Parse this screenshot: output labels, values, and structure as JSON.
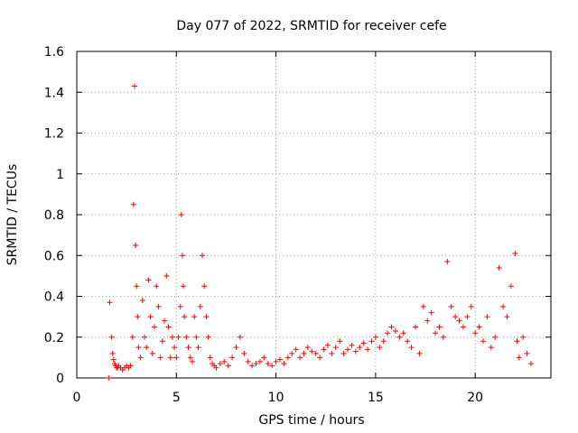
{
  "chart_data": {
    "type": "scatter",
    "title": "Day 077 of 2022, SRMTID for receiver cefe",
    "xlabel": "GPS time / hours",
    "ylabel": "SRMTID / TECUs",
    "xlim": [
      0,
      23.8
    ],
    "ylim": [
      0,
      1.6
    ],
    "grid": true,
    "xticks": [
      0,
      5,
      10,
      15,
      20
    ],
    "xtick_labels": [
      "0",
      "5",
      "10",
      "15",
      "20"
    ],
    "yticks": [
      0,
      0.2,
      0.4,
      0.6,
      0.8,
      1.0,
      1.2,
      1.4,
      1.6
    ],
    "ytick_labels": [
      "0",
      "0.2",
      "0.4",
      "0.6",
      "0.8",
      "1",
      "1.2",
      "1.4",
      "1.6"
    ],
    "marker": "+",
    "color": "#ff0000",
    "series": [
      {
        "name": "SRMTID",
        "x": [
          1.6,
          1.65,
          1.75,
          1.8,
          1.85,
          1.9,
          1.95,
          2.0,
          2.05,
          2.1,
          2.2,
          2.3,
          2.4,
          2.5,
          2.6,
          2.7,
          2.8,
          2.85,
          2.9,
          2.95,
          3.0,
          3.05,
          3.1,
          3.2,
          3.3,
          3.4,
          3.5,
          3.6,
          3.7,
          3.8,
          3.9,
          4.0,
          4.1,
          4.2,
          4.3,
          4.4,
          4.5,
          4.6,
          4.7,
          4.8,
          4.9,
          5.0,
          5.1,
          5.2,
          5.25,
          5.3,
          5.35,
          5.4,
          5.5,
          5.6,
          5.7,
          5.8,
          5.9,
          6.0,
          6.1,
          6.2,
          6.3,
          6.4,
          6.5,
          6.6,
          6.7,
          6.8,
          6.9,
          7.0,
          7.2,
          7.4,
          7.6,
          7.8,
          8.0,
          8.2,
          8.4,
          8.6,
          8.8,
          9.0,
          9.2,
          9.4,
          9.6,
          9.8,
          10.0,
          10.2,
          10.4,
          10.6,
          10.8,
          11.0,
          11.2,
          11.4,
          11.6,
          11.8,
          12.0,
          12.2,
          12.4,
          12.6,
          12.8,
          13.0,
          13.2,
          13.4,
          13.6,
          13.8,
          14.0,
          14.2,
          14.4,
          14.6,
          14.8,
          15.0,
          15.2,
          15.4,
          15.6,
          15.8,
          16.0,
          16.2,
          16.4,
          16.6,
          16.8,
          17.0,
          17.2,
          17.4,
          17.6,
          17.8,
          18.0,
          18.2,
          18.4,
          18.6,
          18.8,
          19.0,
          19.2,
          19.4,
          19.6,
          19.8,
          20.0,
          20.2,
          20.4,
          20.6,
          20.8,
          21.0,
          21.2,
          21.4,
          21.6,
          21.8,
          22.0,
          22.1,
          22.2,
          22.4,
          22.6,
          22.8
        ],
        "y": [
          0.0,
          0.37,
          0.2,
          0.12,
          0.09,
          0.07,
          0.06,
          0.05,
          0.05,
          0.06,
          0.05,
          0.04,
          0.05,
          0.06,
          0.05,
          0.06,
          0.2,
          0.85,
          1.43,
          0.65,
          0.45,
          0.3,
          0.15,
          0.1,
          0.38,
          0.2,
          0.15,
          0.48,
          0.3,
          0.12,
          0.25,
          0.45,
          0.35,
          0.1,
          0.18,
          0.28,
          0.5,
          0.25,
          0.1,
          0.2,
          0.15,
          0.1,
          0.2,
          0.35,
          0.8,
          0.6,
          0.45,
          0.3,
          0.2,
          0.15,
          0.1,
          0.08,
          0.3,
          0.2,
          0.15,
          0.35,
          0.6,
          0.45,
          0.3,
          0.2,
          0.1,
          0.07,
          0.06,
          0.05,
          0.07,
          0.08,
          0.06,
          0.1,
          0.15,
          0.2,
          0.12,
          0.08,
          0.06,
          0.07,
          0.08,
          0.1,
          0.07,
          0.06,
          0.08,
          0.09,
          0.07,
          0.1,
          0.12,
          0.14,
          0.1,
          0.12,
          0.15,
          0.13,
          0.12,
          0.1,
          0.14,
          0.16,
          0.12,
          0.15,
          0.18,
          0.12,
          0.14,
          0.16,
          0.13,
          0.15,
          0.17,
          0.14,
          0.18,
          0.2,
          0.15,
          0.18,
          0.22,
          0.25,
          0.23,
          0.2,
          0.22,
          0.18,
          0.15,
          0.25,
          0.12,
          0.35,
          0.28,
          0.32,
          0.22,
          0.25,
          0.2,
          0.57,
          0.35,
          0.3,
          0.28,
          0.25,
          0.3,
          0.35,
          0.22,
          0.25,
          0.18,
          0.3,
          0.15,
          0.2,
          0.54,
          0.35,
          0.3,
          0.45,
          0.61,
          0.18,
          0.1,
          0.2,
          0.12,
          0.07
        ]
      }
    ]
  }
}
